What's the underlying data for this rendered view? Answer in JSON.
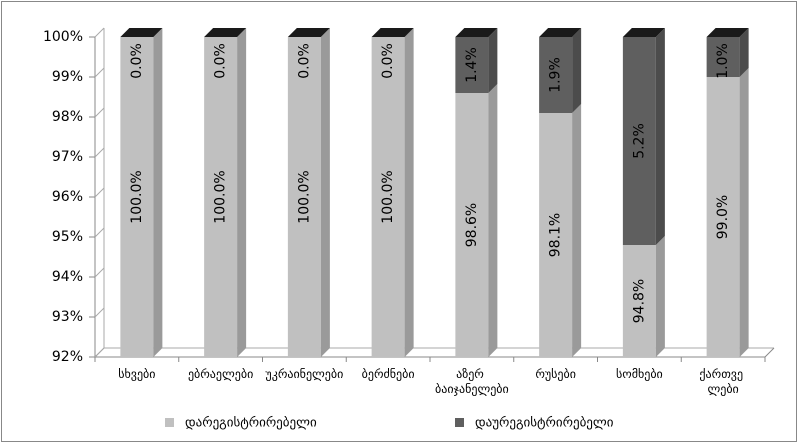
{
  "chart_data": {
    "type": "stacked-bar-3d",
    "categories": [
      "სხვები",
      "ებრაელები",
      "უკრაინელები",
      "ბერძნები",
      "აზერ ბაიჯანელები",
      "რუსები",
      "სომხები",
      "ქართვე ლები"
    ],
    "series": [
      {
        "name": "დარეგისტრირებელი",
        "color": "#c0c0c0",
        "values": [
          100,
          100,
          100,
          100,
          98.6,
          98.1,
          94.8,
          99.0
        ],
        "value_labels": [
          "100.0%",
          "100.0%",
          "100.0%",
          "100.0%",
          "98.6%",
          "98.1%",
          "94.8%",
          "99.0%"
        ]
      },
      {
        "name": "დაურეგისტრირებელი",
        "color": "#5f5f5f",
        "values": [
          0,
          0,
          0,
          0,
          1.4,
          1.9,
          5.2,
          1.0
        ],
        "value_labels": [
          "0.0%",
          "0.0%",
          "0.0%",
          "0.0%",
          "1.4%",
          "1.9%",
          "5.2%",
          "1.0%"
        ]
      }
    ],
    "ylim": [
      92,
      100
    ],
    "yticks": [
      {
        "value": 92,
        "label": "92%"
      },
      {
        "value": 93,
        "label": "93%"
      },
      {
        "value": 94,
        "label": "94%"
      },
      {
        "value": 95,
        "label": "95%"
      },
      {
        "value": 96,
        "label": "96%"
      },
      {
        "value": 97,
        "label": "97%"
      },
      {
        "value": 98,
        "label": "98%"
      },
      {
        "value": 99,
        "label": "99%"
      },
      {
        "value": 100,
        "label": "100%"
      }
    ],
    "grid": false,
    "legend": "bottom"
  }
}
